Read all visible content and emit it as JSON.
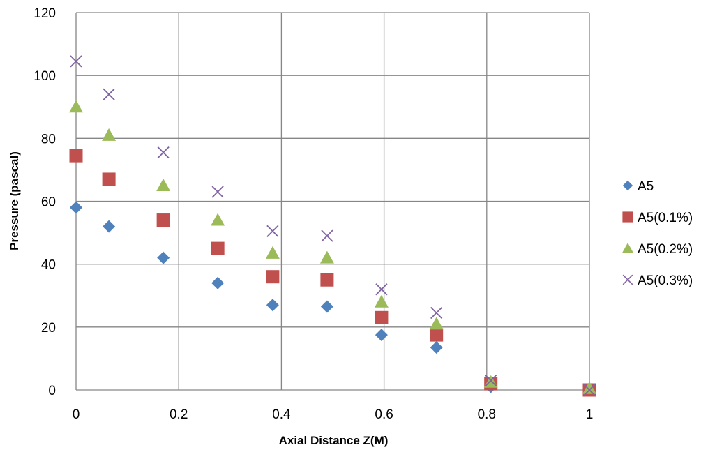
{
  "chart_data": {
    "type": "scatter",
    "title": "",
    "xlabel": "Axial Distance Z(M)",
    "ylabel": "Pressure (pascal)",
    "xlim": [
      0,
      1
    ],
    "ylim": [
      0,
      120
    ],
    "x_ticks": [
      0,
      0.2,
      0.4,
      0.6,
      0.8,
      1
    ],
    "y_ticks": [
      0,
      20,
      40,
      60,
      80,
      100,
      120
    ],
    "x_tick_labels": [
      "0",
      "0.2",
      "0.4",
      "0.6",
      "0.8",
      "1"
    ],
    "y_tick_labels": [
      "0",
      "20",
      "40",
      "60",
      "80",
      "100",
      "120"
    ],
    "grid": true,
    "legend_position": "right",
    "series": [
      {
        "name": "A5",
        "marker": "diamond",
        "color": "#4F81BD",
        "x": [
          0,
          0.064,
          0.17,
          0.276,
          0.383,
          0.489,
          0.595,
          0.702,
          0.808,
          1.0
        ],
        "y": [
          58,
          52,
          42,
          34,
          27,
          26.5,
          17.5,
          13.5,
          1,
          0
        ]
      },
      {
        "name": "A5(0.1%)",
        "marker": "square",
        "color": "#C0504D",
        "x": [
          0,
          0.064,
          0.17,
          0.276,
          0.383,
          0.489,
          0.595,
          0.702,
          0.808,
          1.0
        ],
        "y": [
          74.5,
          67,
          54,
          45,
          36,
          35,
          23,
          17.5,
          2,
          0
        ]
      },
      {
        "name": "A5(0.2%)",
        "marker": "triangle",
        "color": "#9BBB59",
        "x": [
          0,
          0.064,
          0.17,
          0.276,
          0.383,
          0.489,
          0.595,
          0.702,
          0.808,
          1.0
        ],
        "y": [
          90,
          81,
          65,
          54,
          43.5,
          42,
          28,
          21,
          2.5,
          0.5
        ]
      },
      {
        "name": "A5(0.3%)",
        "marker": "x",
        "color": "#8064A2",
        "x": [
          0,
          0.064,
          0.17,
          0.276,
          0.383,
          0.489,
          0.595,
          0.702,
          0.808,
          1.0
        ],
        "y": [
          104.5,
          94,
          75.5,
          63,
          50.5,
          49,
          32,
          24.5,
          3,
          0
        ]
      }
    ]
  }
}
